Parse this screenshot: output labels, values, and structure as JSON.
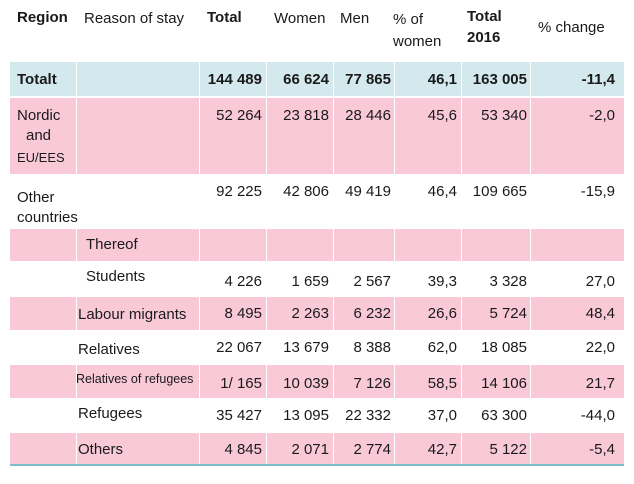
{
  "headers": {
    "region": "Region",
    "reason": "Reason of stay",
    "total": "Total",
    "women": "Women",
    "men": "Men",
    "pct_women_1": "% of",
    "pct_women_2": "women",
    "total2016_1": "Total",
    "total2016_2": "2016",
    "change": "% change"
  },
  "rows": {
    "totalt": {
      "label": "Totalt",
      "total": "144 489",
      "women": "66 624",
      "men": "77 865",
      "pct": "46,1",
      "t2016": "163 005",
      "chg": "-11,4"
    },
    "nordic": {
      "label1": "Nordic",
      "label2": "and",
      "label3": "EU/EES",
      "total": "52 264",
      "women": "23 818",
      "men": "28 446",
      "pct": "45,6",
      "t2016": "53 340",
      "chg": "-2,0"
    },
    "other": {
      "label1": "Other",
      "label2": "countries",
      "total": "92 225",
      "women": "42 806",
      "men": "49 419",
      "pct": "46,4",
      "t2016": "109 665",
      "chg": "-15,9"
    },
    "thereof": {
      "label": "Thereof"
    },
    "students": {
      "label": "Students",
      "total": "4 226",
      "women": "1 659",
      "men": "2 567",
      "pct": "39,3",
      "t2016": "3 328",
      "chg": "27,0"
    },
    "labour": {
      "label": "Labour migrants",
      "total": "8 495",
      "women": "2 263",
      "men": "6 232",
      "pct": "26,6",
      "t2016": "5 724",
      "chg": "48,4"
    },
    "relatives": {
      "label": "Relatives",
      "total": "22 067",
      "women": "13 679",
      "men": "8 388",
      "pct": "62,0",
      "t2016": "18 085",
      "chg": "22,0"
    },
    "relref": {
      "label": "Relatives of refugees",
      "total": "1/ 165",
      "women": "10 039",
      "men": "7 126",
      "pct": "58,5",
      "t2016": "14 106",
      "chg": "21,7"
    },
    "refugees": {
      "label": "Refugees",
      "total": "35 427",
      "women": "13 095",
      "men": "22 332",
      "pct": "37,0",
      "t2016": "63 300",
      "chg": "-44,0"
    },
    "others": {
      "label": "Others",
      "total": "4 845",
      "women": "2 071",
      "men": "2 774",
      "pct": "42,7",
      "t2016": "5 122",
      "chg": "-5,4"
    }
  }
}
